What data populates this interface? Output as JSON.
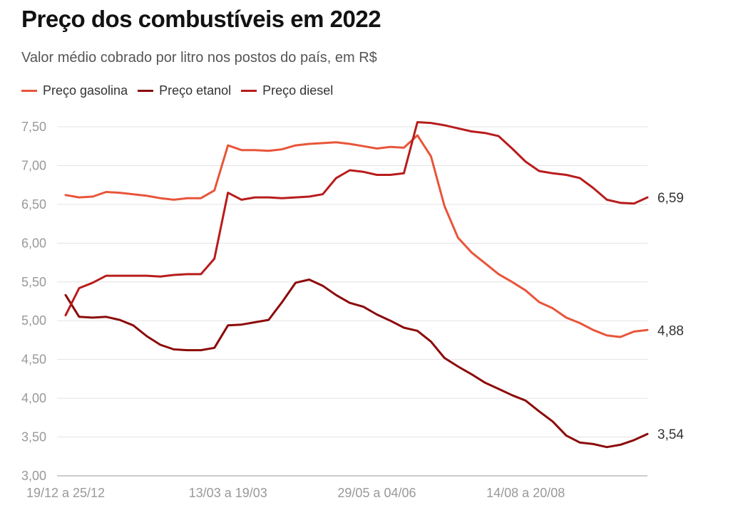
{
  "header": {
    "title": "Preço dos combustíveis em 2022",
    "subtitle": "Valor médio cobrado por litro nos postos do país, em R$"
  },
  "legend": {
    "items": [
      {
        "label": "Preço gasolina",
        "color": "#e8553a"
      },
      {
        "label": "Preço etanol",
        "color": "#8c0a0a"
      },
      {
        "label": "Preço diesel",
        "color": "#b81c1c"
      }
    ]
  },
  "chart_data": {
    "type": "line",
    "title": "Preço dos combustíveis em 2022",
    "subtitle": "Valor médio cobrado por litro nos postos do país, em R$",
    "ylim": [
      3.0,
      7.5
    ],
    "yticks": [
      "3,00",
      "3,50",
      "4,00",
      "4,50",
      "5,00",
      "5,50",
      "6,00",
      "6,50",
      "7,00",
      "7,50"
    ],
    "xtick_labels": [
      {
        "index": 0,
        "label": "19/12 a 25/12"
      },
      {
        "index": 12,
        "label": "13/03 a 19/03"
      },
      {
        "index": 23,
        "label": "29/05 a 04/06"
      },
      {
        "index": 34,
        "label": "14/08 a 20/08"
      }
    ],
    "grid": true,
    "legend_position": "top-left",
    "series": [
      {
        "name": "Preço gasolina",
        "color": "#e8553a",
        "end_label": "4,88",
        "values": [
          6.62,
          6.59,
          6.6,
          6.66,
          6.65,
          6.63,
          6.61,
          6.58,
          6.56,
          6.58,
          6.58,
          6.68,
          7.26,
          7.2,
          7.2,
          7.19,
          7.21,
          7.26,
          7.28,
          7.29,
          7.3,
          7.28,
          7.25,
          7.22,
          7.24,
          7.23,
          7.39,
          7.12,
          6.48,
          6.07,
          5.88,
          5.74,
          5.6,
          5.5,
          5.39,
          5.24,
          5.16,
          5.04,
          4.97,
          4.88,
          4.81,
          4.79,
          4.86,
          4.88
        ]
      },
      {
        "name": "Preço etanol",
        "color": "#8c0a0a",
        "end_label": "3,54",
        "values": [
          5.33,
          5.05,
          5.04,
          5.05,
          5.01,
          4.94,
          4.8,
          4.69,
          4.63,
          4.62,
          4.62,
          4.65,
          4.94,
          4.95,
          4.98,
          5.01,
          5.24,
          5.49,
          5.53,
          5.45,
          5.33,
          5.23,
          5.18,
          5.08,
          5.0,
          4.91,
          4.87,
          4.73,
          4.52,
          4.41,
          4.31,
          4.2,
          4.12,
          4.04,
          3.97,
          3.83,
          3.7,
          3.52,
          3.43,
          3.41,
          3.37,
          3.4,
          3.46,
          3.54
        ]
      },
      {
        "name": "Preço diesel",
        "color": "#b81c1c",
        "end_label": "6,59",
        "values": [
          5.07,
          5.42,
          5.49,
          5.58,
          5.58,
          5.58,
          5.58,
          5.57,
          5.59,
          5.6,
          5.6,
          5.8,
          6.65,
          6.56,
          6.59,
          6.59,
          6.58,
          6.59,
          6.6,
          6.63,
          6.84,
          6.94,
          6.92,
          6.88,
          6.88,
          6.9,
          7.56,
          7.55,
          7.52,
          7.48,
          7.44,
          7.42,
          7.38,
          7.22,
          7.05,
          6.93,
          6.9,
          6.88,
          6.84,
          6.71,
          6.56,
          6.52,
          6.51,
          6.59
        ]
      }
    ]
  }
}
